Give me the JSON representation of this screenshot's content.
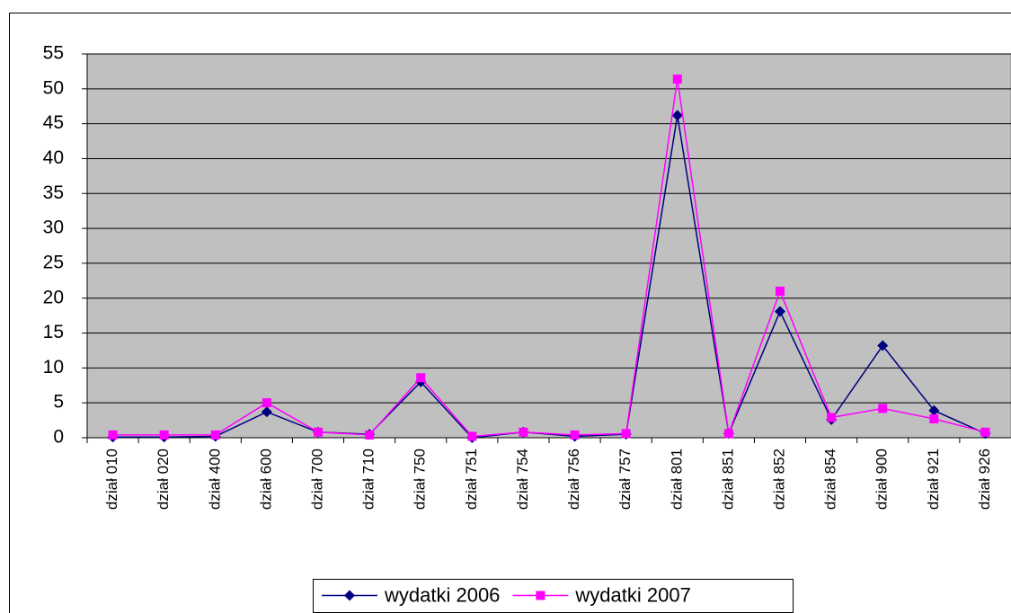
{
  "chart_data": {
    "type": "line",
    "categories": [
      "dział 010",
      "dział 020",
      "dział 400",
      "dział 600",
      "dział 700",
      "dział 710",
      "dział 750",
      "dział 751",
      "dział 754",
      "dział 756",
      "dział 757",
      "dział 801",
      "dział 851",
      "dział 852",
      "dział 854",
      "dział 900",
      "dział 921",
      "dział 926"
    ],
    "series": [
      {
        "name": "wydatki 2006",
        "color": "#000080",
        "marker": "diamond",
        "values": [
          0.1,
          0.1,
          0.2,
          3.7,
          0.8,
          0.5,
          8.0,
          0.0,
          0.8,
          0.2,
          0.5,
          46.2,
          0.6,
          18.1,
          2.6,
          13.2,
          3.9,
          0.6
        ]
      },
      {
        "name": "wydatki 2007",
        "color": "#ff00ff",
        "marker": "square",
        "values": [
          0.4,
          0.4,
          0.4,
          5.0,
          0.8,
          0.4,
          8.6,
          0.2,
          0.8,
          0.4,
          0.6,
          51.4,
          0.6,
          21.0,
          2.9,
          4.2,
          2.7,
          0.8
        ]
      }
    ],
    "ylim": [
      0,
      55
    ],
    "yticks": [
      0,
      5,
      10,
      15,
      20,
      25,
      30,
      35,
      40,
      45,
      50,
      55
    ],
    "grid": true,
    "legend": "bottom",
    "plot_background": "#c0c0c0"
  }
}
